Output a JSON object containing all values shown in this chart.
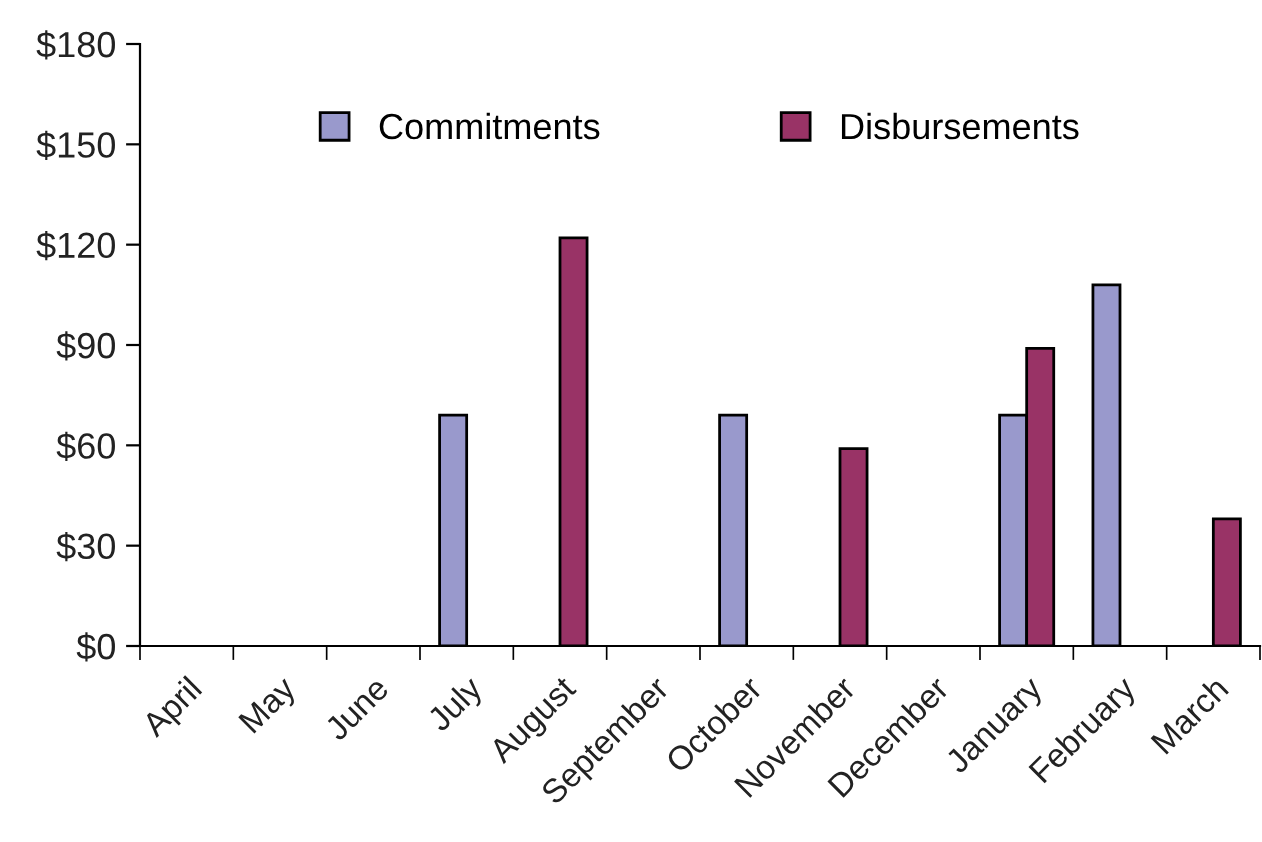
{
  "chart_data": {
    "type": "bar",
    "categories": [
      "April",
      "May",
      "June",
      "July",
      "August",
      "September",
      "October",
      "November",
      "December",
      "January",
      "February",
      "March"
    ],
    "series": [
      {
        "name": "Commitments",
        "color": "#9999cc",
        "values": [
          null,
          null,
          null,
          69,
          null,
          null,
          69,
          null,
          null,
          69,
          108,
          null
        ]
      },
      {
        "name": "Disbursements",
        "color": "#993366",
        "values": [
          null,
          null,
          null,
          null,
          122,
          null,
          null,
          59,
          null,
          89,
          null,
          38
        ]
      }
    ],
    "ylim": [
      0,
      180
    ],
    "yticks": [
      {
        "value": 0,
        "label": "$0"
      },
      {
        "value": 30,
        "label": "$30"
      },
      {
        "value": 60,
        "label": "$60"
      },
      {
        "value": 90,
        "label": "$90"
      },
      {
        "value": 120,
        "label": "$120"
      },
      {
        "value": 150,
        "label": "$150"
      },
      {
        "value": 180,
        "label": "$180"
      }
    ],
    "grid": false,
    "legend": "top"
  }
}
